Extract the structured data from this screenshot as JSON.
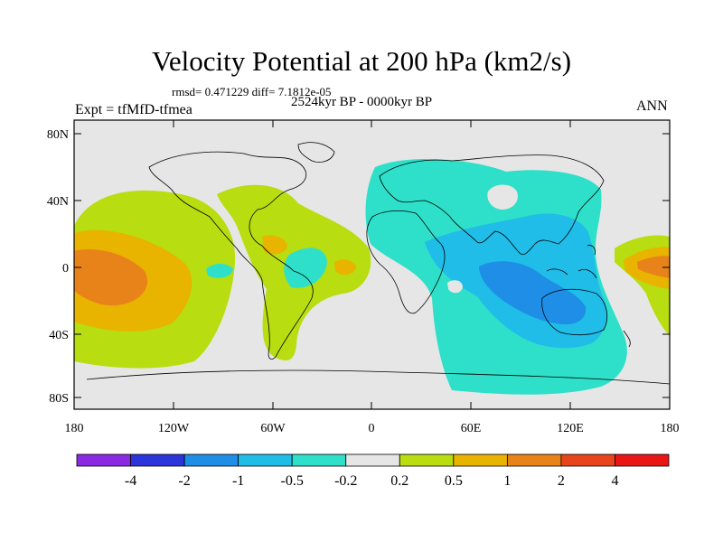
{
  "title": "Velocity Potential at 200 hPa (km2/s)",
  "stats": "rmsd= 0.471229 diff= 7.1812e-05",
  "experiment": "Expt = tfMfD-tfmea",
  "period": "2524kyr BP - 0000kyr BP",
  "season": "ANN",
  "axes": {
    "y_ticks": [
      "80N",
      "40N",
      "0",
      "40S",
      "80S"
    ],
    "x_ticks": [
      "180",
      "120W",
      "60W",
      "0",
      "60E",
      "120E",
      "180"
    ]
  },
  "colorbar": {
    "labels": [
      "-4",
      "-2",
      "-1",
      "-0.5",
      "-0.2",
      "0.2",
      "0.5",
      "1",
      "2",
      "4"
    ],
    "colors": [
      "#8a2be2",
      "#2b35d9",
      "#1e8ee6",
      "#1fbde8",
      "#2ee0c9",
      "#e6e6e6",
      "#b8dd10",
      "#e8b400",
      "#e8831a",
      "#e8451c",
      "#ea1616"
    ]
  }
}
